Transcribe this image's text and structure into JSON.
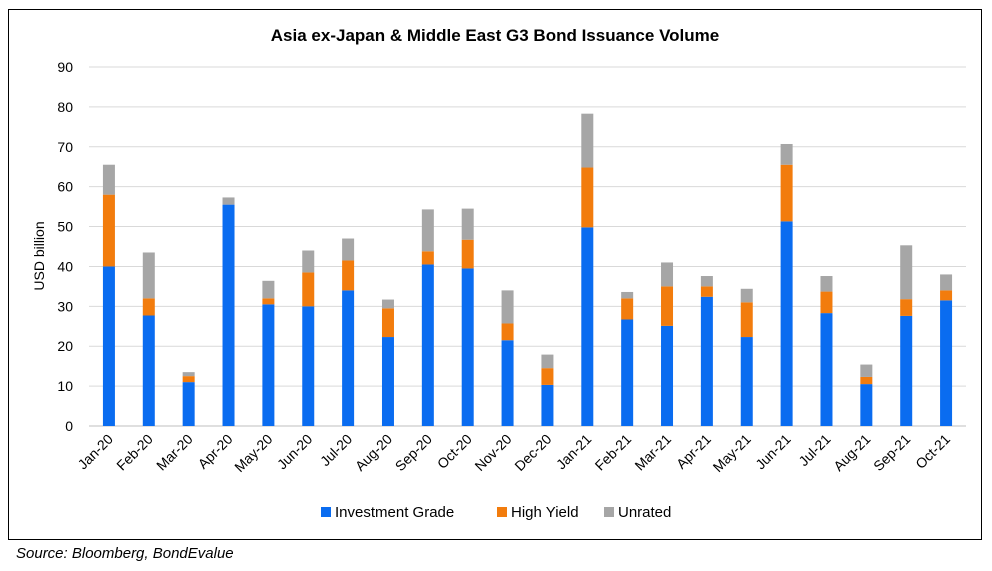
{
  "chart_data": {
    "type": "bar",
    "stacked": true,
    "title": "Asia ex-Japan & Middle East G3 Bond Issuance Volume",
    "xlabel": "",
    "ylabel": "USD billion",
    "ylim": [
      0,
      90
    ],
    "yticks": [
      0,
      10,
      20,
      30,
      40,
      50,
      60,
      70,
      80,
      90
    ],
    "grid": true,
    "legend": "bottom",
    "categories": [
      "Jan-20",
      "Feb-20",
      "Mar-20",
      "Apr-20",
      "May-20",
      "Jun-20",
      "Jul-20",
      "Aug-20",
      "Sep-20",
      "Oct-20",
      "Nov-20",
      "Dec-20",
      "Jan-21",
      "Feb-21",
      "Mar-21",
      "Apr-21",
      "May-21",
      "Jun-21",
      "Jul-21",
      "Aug-21",
      "Sep-21",
      "Oct-21"
    ],
    "series": [
      {
        "name": "Investment Grade",
        "color": "#0a6cf0",
        "values": [
          40,
          27.7,
          11,
          55.5,
          30.5,
          30,
          34,
          22.3,
          40.5,
          39.5,
          21.5,
          10.3,
          49.8,
          26.7,
          25.1,
          32.4,
          22.3,
          51.3,
          28.3,
          10.5,
          27.6,
          31.5
        ]
      },
      {
        "name": "High Yield",
        "color": "#f27c0d",
        "values": [
          18,
          4.3,
          1.5,
          0,
          1.5,
          8.5,
          7.5,
          7.2,
          3.3,
          7.2,
          4.2,
          4.2,
          15,
          5.3,
          9.9,
          2.6,
          8.7,
          14.2,
          5.4,
          1.8,
          4.2,
          2.5
        ]
      },
      {
        "name": "Unrated",
        "color": "#a6a6a6",
        "values": [
          7.5,
          11.5,
          1,
          1.8,
          4.4,
          5.5,
          5.5,
          2.2,
          10.5,
          7.8,
          8.3,
          3.4,
          13.5,
          1.6,
          6,
          2.6,
          3.4,
          5.2,
          3.9,
          3.1,
          13.5,
          4
        ]
      }
    ]
  },
  "source": "Source: Bloomberg, BondEvalue"
}
